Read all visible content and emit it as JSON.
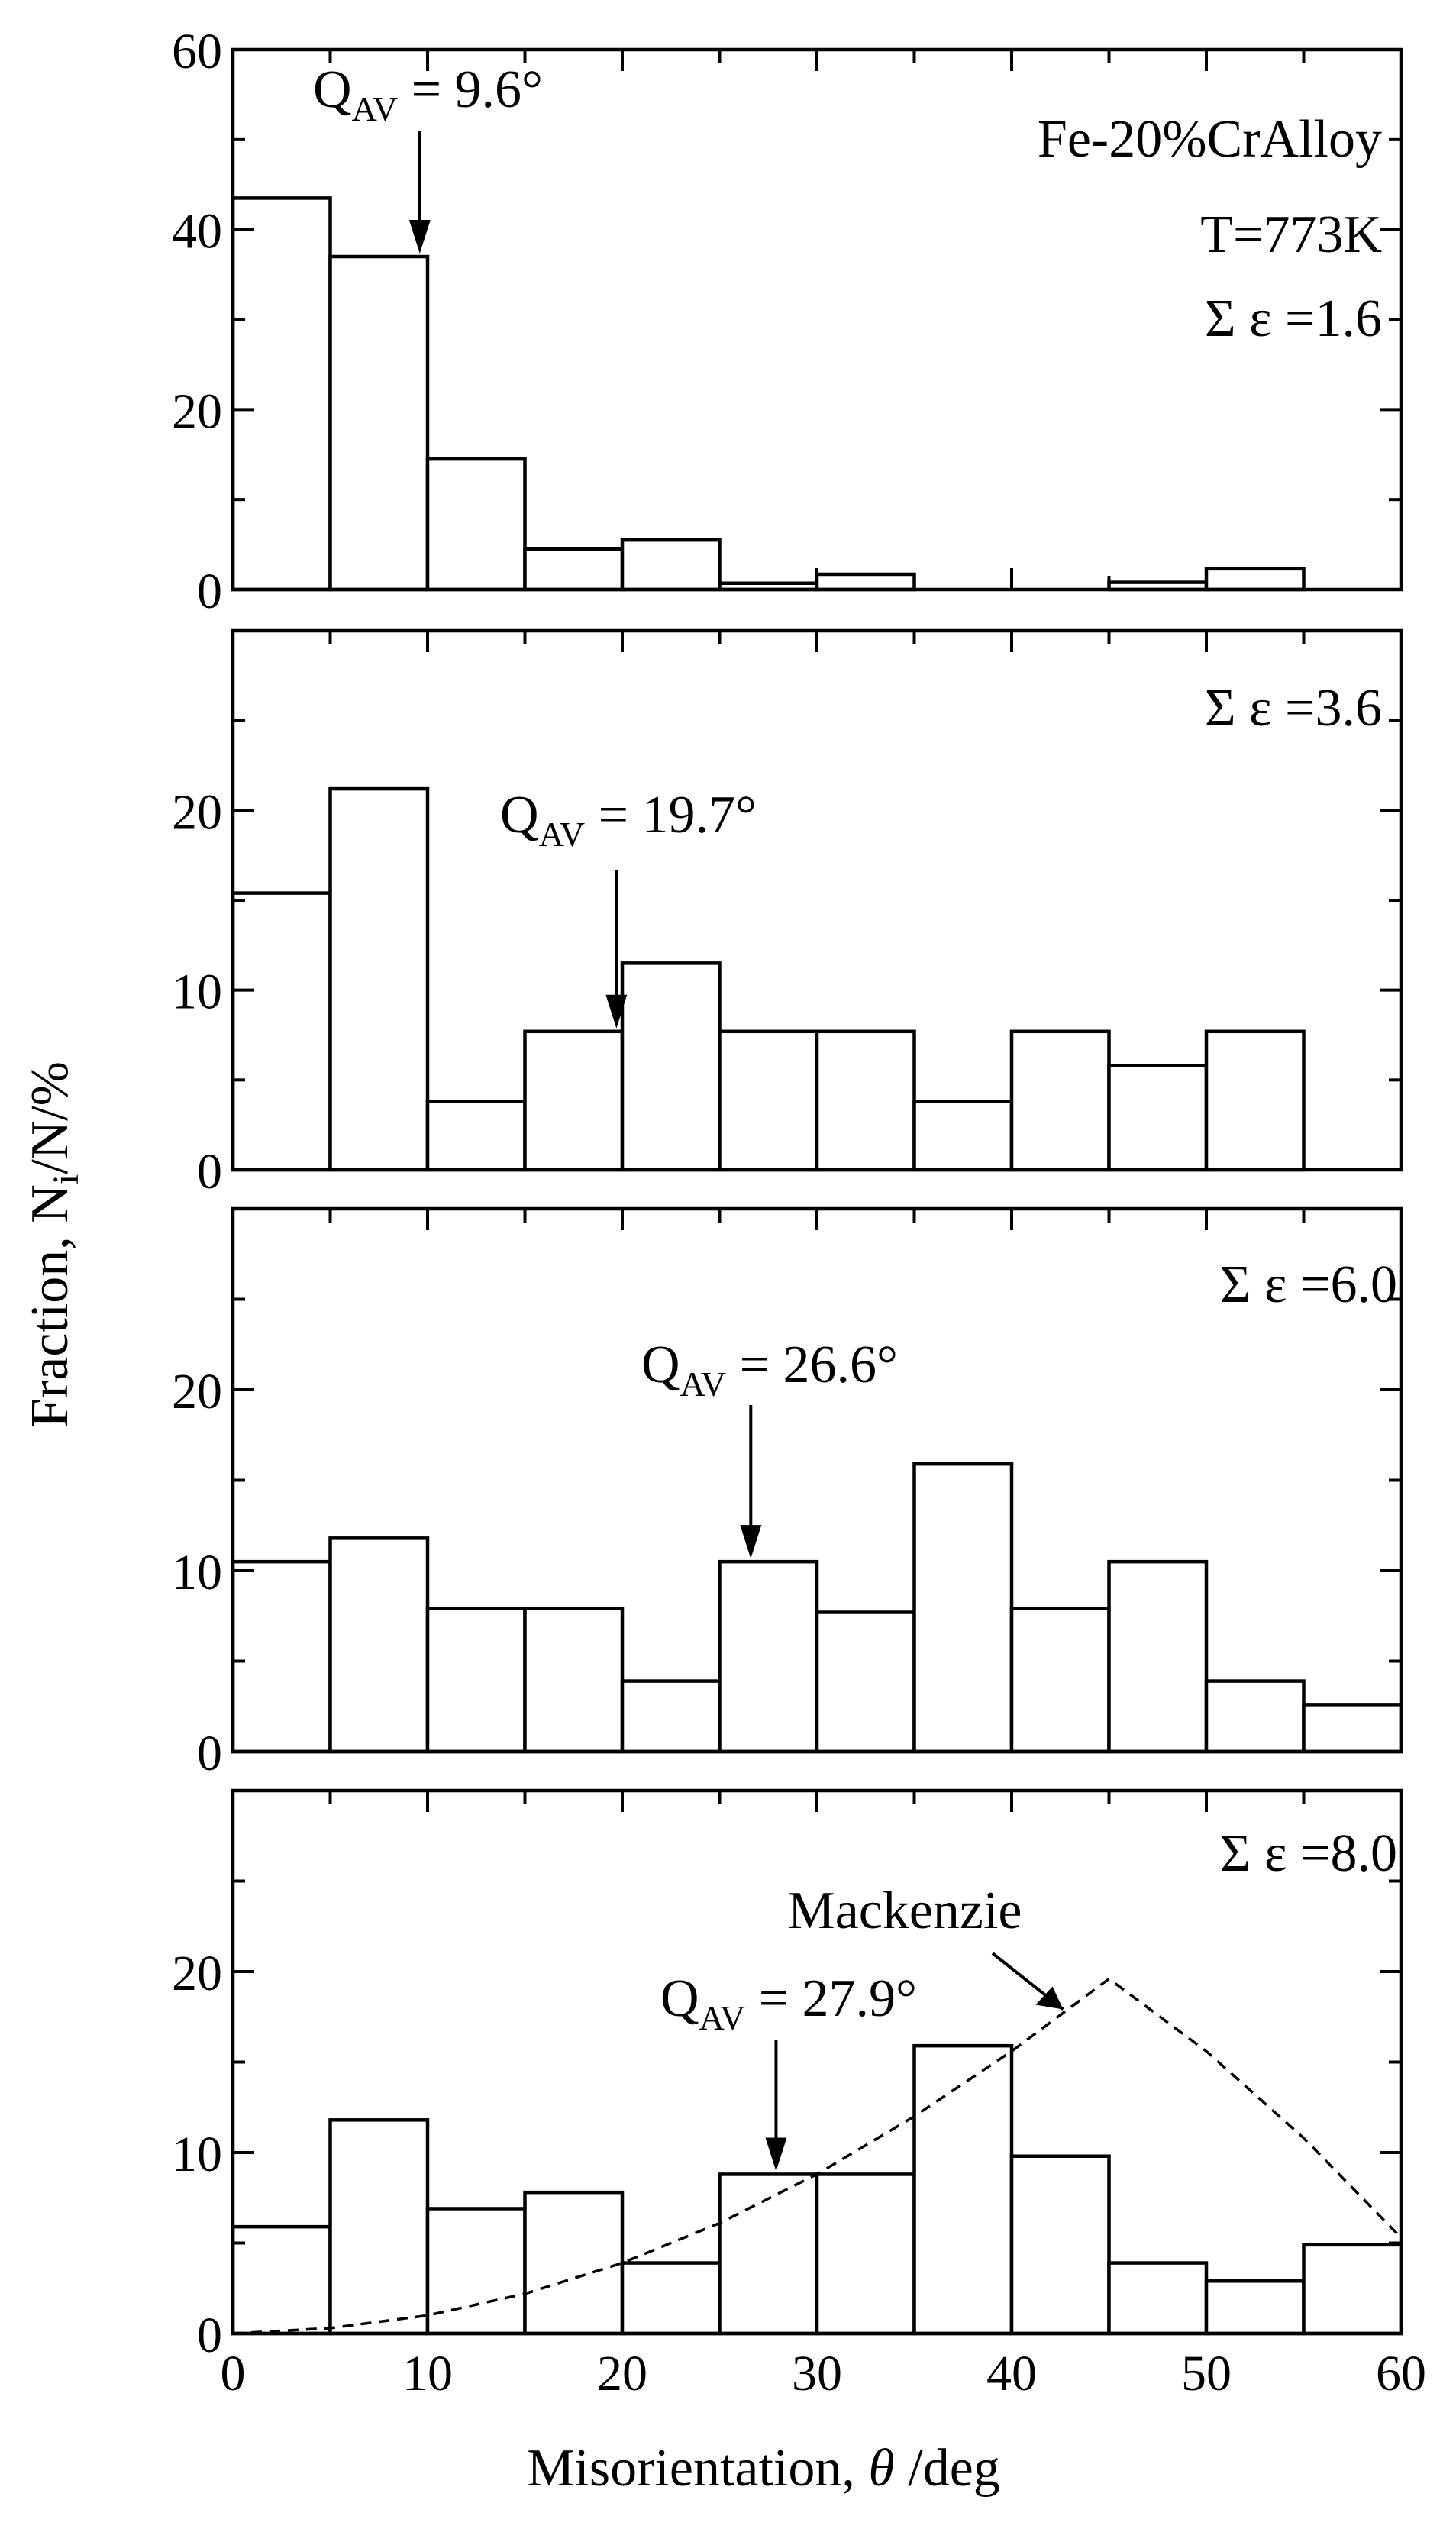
{
  "chart_data": {
    "type": "bar",
    "figure": {
      "xlabel_prefix": "Misorientation, ",
      "xlabel_symbol": "θ",
      "xlabel_suffix": " /deg",
      "ylabel_prefix": "Fraction, N",
      "ylabel_sub": "i",
      "ylabel_suffix": "/N/%",
      "xlim": [
        0,
        60
      ],
      "x_ticks": [
        "0",
        "10",
        "20",
        "30",
        "40",
        "50",
        "60"
      ],
      "bin_width": 5
    },
    "panels": [
      {
        "ylim": [
          0,
          60
        ],
        "y_ticks": [
          "0",
          "20",
          "40",
          "60"
        ],
        "bin_starts": [
          0,
          5,
          10,
          15,
          20,
          25,
          30,
          35,
          40,
          45,
          50,
          55
        ],
        "values": [
          43.5,
          37,
          14.5,
          4.5,
          5.5,
          0.7,
          1.7,
          0,
          0,
          0.8,
          2.3,
          0
        ],
        "labels": [
          {
            "text": "Fe-20%CrAlloy"
          },
          {
            "text": "T=773K"
          },
          {
            "text": "Σ  ε =1.6"
          }
        ],
        "q_av": {
          "main": "Q",
          "sub": "AV",
          "rest": " = 9.6°",
          "value": 9.6
        }
      },
      {
        "ylim": [
          0,
          30
        ],
        "y_ticks": [
          "0",
          "10",
          "20"
        ],
        "bin_starts": [
          0,
          5,
          10,
          15,
          20,
          25,
          30,
          35,
          40,
          45,
          50,
          55
        ],
        "values": [
          15.4,
          21.2,
          3.8,
          7.7,
          11.5,
          7.7,
          7.7,
          3.8,
          7.7,
          5.8,
          7.7,
          0
        ],
        "labels": [
          {
            "text": "Σ  ε =3.6"
          }
        ],
        "q_av": {
          "main": "Q",
          "sub": "AV",
          "rest": " = 19.7°",
          "value": 19.7
        }
      },
      {
        "ylim": [
          0,
          30
        ],
        "y_ticks": [
          "0",
          "10",
          "20"
        ],
        "bin_starts": [
          0,
          5,
          10,
          15,
          20,
          25,
          30,
          35,
          40,
          45,
          50,
          55
        ],
        "values": [
          10.5,
          11.8,
          7.9,
          7.9,
          3.9,
          10.5,
          7.7,
          15.9,
          7.9,
          10.5,
          3.9,
          2.6
        ],
        "labels": [
          {
            "text": "Σ  ε =6.0"
          }
        ],
        "q_av": {
          "main": "Q",
          "sub": "AV",
          "rest": " = 26.6°",
          "value": 26.6
        }
      },
      {
        "ylim": [
          0,
          30
        ],
        "y_ticks": [
          "0",
          "10",
          "20"
        ],
        "bin_starts": [
          0,
          5,
          10,
          15,
          20,
          25,
          30,
          35,
          40,
          45,
          50,
          55
        ],
        "values": [
          5.9,
          11.8,
          6.9,
          7.8,
          3.9,
          8.8,
          8.8,
          15.9,
          9.8,
          3.9,
          2.9,
          4.9
        ],
        "labels": [
          {
            "text": "Σ  ε =8.0"
          },
          {
            "text": "Mackenzie"
          }
        ],
        "q_av": {
          "main": "Q",
          "sub": "AV",
          "rest": " = 27.9°",
          "value": 27.9
        },
        "mackenzie_curve": {
          "x": [
            0,
            5,
            10,
            15,
            20,
            25,
            30,
            35,
            40,
            45,
            50,
            55,
            60
          ],
          "y": [
            0,
            0.3,
            1.0,
            2.2,
            3.9,
            6.1,
            8.8,
            12.0,
            15.6,
            19.6,
            15.6,
            10.8,
            5.3
          ]
        }
      }
    ]
  }
}
